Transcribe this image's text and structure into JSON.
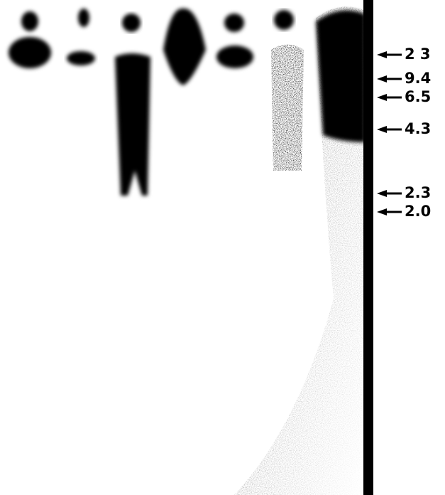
{
  "markers": [
    {
      "label": "2 3"
    },
    {
      "label": "9.4"
    },
    {
      "label": "6.5"
    },
    {
      "label": "4.3"
    },
    {
      "label": "2.3"
    },
    {
      "label": "2.0"
    }
  ]
}
